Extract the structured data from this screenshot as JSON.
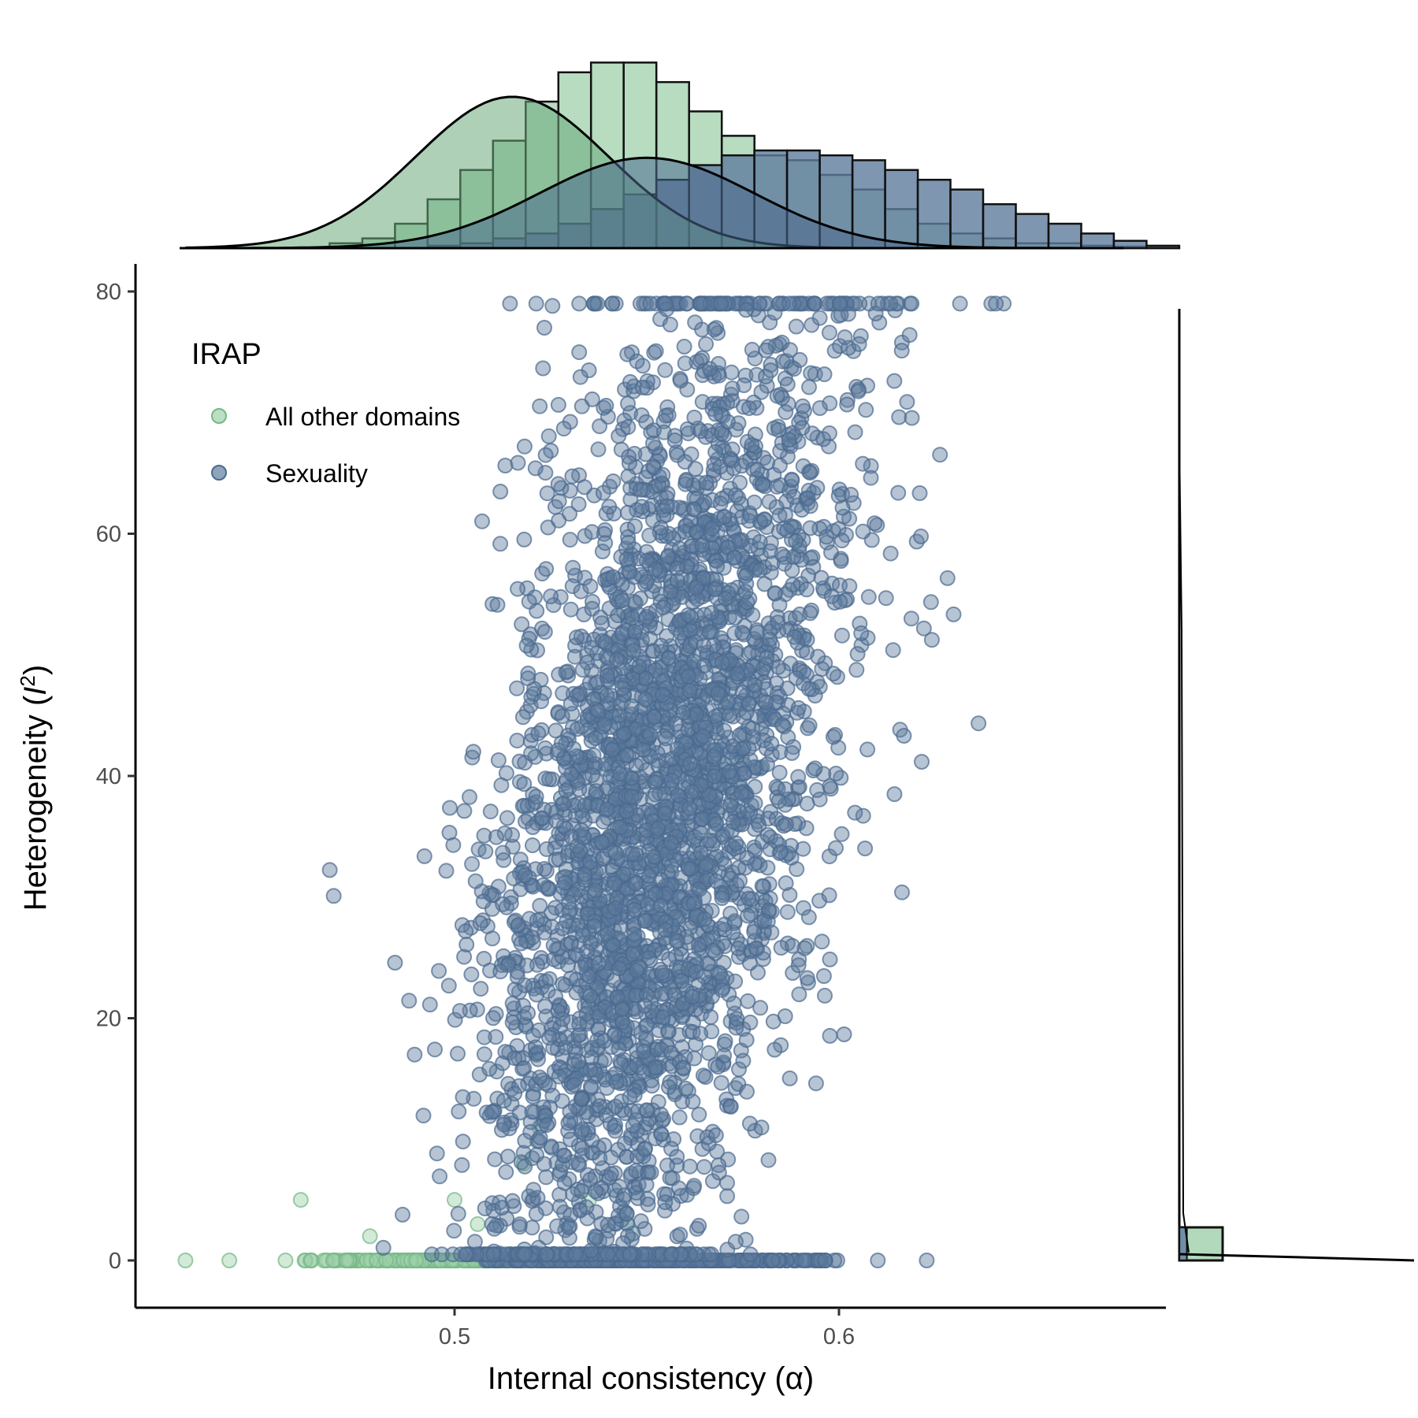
{
  "chart_data": {
    "type": "scatter",
    "title": "",
    "xlabel": "Internal consistency (α)",
    "ylabel_prefix": "Heterogeneity (",
    "ylabel_var": "I",
    "ylabel_sup": "2",
    "ylabel_suffix": ")",
    "xlim": [
      0.43,
      0.68
    ],
    "ylim": [
      -3,
      82
    ],
    "x_ticks": [
      0.5,
      0.6
    ],
    "x_tick_labels": [
      "0.5",
      "0.6"
    ],
    "y_ticks": [
      0,
      20,
      40,
      60,
      80
    ],
    "y_tick_labels": [
      "0",
      "20",
      "40",
      "60",
      "80"
    ],
    "grid": false,
    "legend": {
      "title": "IRAP",
      "placement": "top-left"
    },
    "marginals": {
      "top": "histogram with density curve of internal consistency per group",
      "right": "histogram with density curve of heterogeneity per group"
    },
    "series": [
      {
        "name": "All other domains",
        "color": "#74b884",
        "fill_color": "#9fd0ab",
        "x_mean": 0.515,
        "x_sd": 0.025,
        "y_typical": 0,
        "n_approx": 5000
      },
      {
        "name": "Sexuality",
        "color": "#4a6a8e",
        "fill_color": "#5f7c9e",
        "x_mean": 0.55,
        "x_sd": 0.028,
        "y_range": [
          0,
          79
        ],
        "n_approx": 5000
      }
    ],
    "top_histogram": {
      "bin_start": 0.4675,
      "bin_width": 0.0085,
      "series": [
        {
          "name": "All other domains",
          "counts": [
            1,
            2,
            5,
            10,
            16,
            22,
            30,
            36,
            38,
            38,
            34,
            28,
            23,
            19,
            18,
            15,
            12,
            8,
            5,
            3,
            2,
            1,
            1,
            0.5,
            0.3,
            0.1
          ]
        },
        {
          "name": "Sexuality",
          "counts": [
            0,
            0,
            0,
            0.5,
            1,
            2,
            3,
            5,
            8,
            11,
            14,
            17,
            19,
            20,
            20,
            19,
            18,
            16,
            14,
            12,
            9,
            7,
            5,
            3,
            1.5,
            0.5
          ]
        }
      ]
    },
    "right_histogram": {
      "series": [
        {
          "name": "All other domains",
          "count_at_zero": 100
        },
        {
          "name": "Sexuality",
          "count_at_zero": 6
        }
      ]
    }
  }
}
